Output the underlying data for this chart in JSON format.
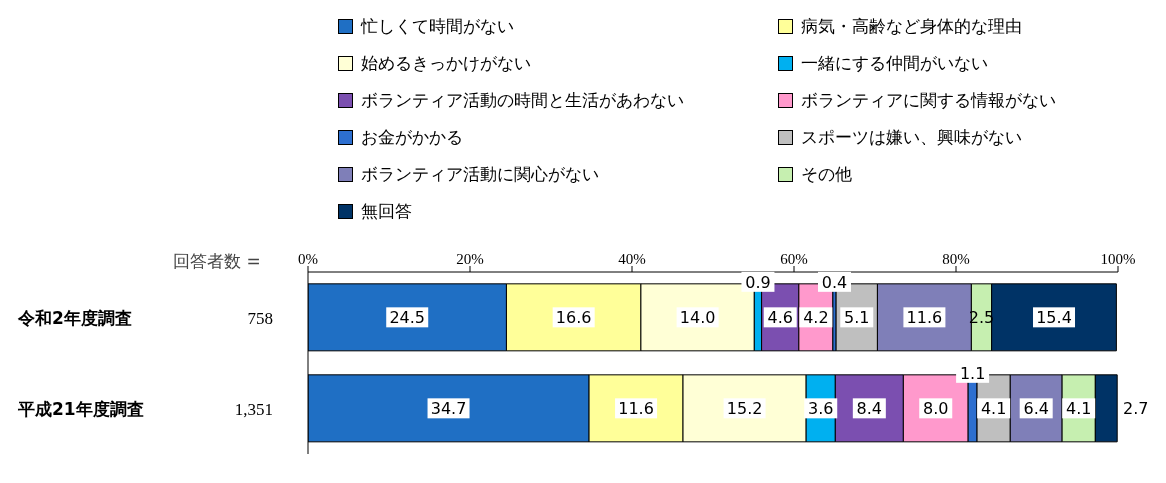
{
  "chart_data": {
    "type": "bar",
    "orientation": "horizontal",
    "stacked": true,
    "categories": [
      "令和2年度調査",
      "平成21年度調査"
    ],
    "xlim": [
      0,
      100
    ],
    "xticks": [
      {
        "value": 0,
        "label": "0%"
      },
      {
        "value": 20,
        "label": "20%"
      },
      {
        "value": 40,
        "label": "40%"
      },
      {
        "value": 60,
        "label": "60%"
      },
      {
        "value": 80,
        "label": "80%"
      },
      {
        "value": 100,
        "label": "100%"
      }
    ],
    "grid": false,
    "legend": "top",
    "annotations": [
      "回答者数 =",
      "758",
      "1,351"
    ],
    "series": [
      {
        "name": "忙しくて時間がない",
        "color": "#1f6fc4",
        "values": [
          24.5,
          34.7
        ],
        "value_labels": [
          "24.5",
          "34.7"
        ]
      },
      {
        "name": "病気・高齢など身体的な理由",
        "color": "#ffff99",
        "values": [
          16.6,
          11.6
        ],
        "value_labels": [
          "16.6",
          "11.6"
        ]
      },
      {
        "name": "始めるきっかけがない",
        "color": "#ffffd6",
        "values": [
          14.0,
          15.2
        ],
        "value_labels": [
          "14.0",
          "15.2"
        ]
      },
      {
        "name": "一緒にする仲間がいない",
        "color": "#00b0f0",
        "values": [
          0.9,
          3.6
        ],
        "value_labels": [
          "0.9",
          "3.6"
        ]
      },
      {
        "name": "ボランティア活動の時間と生活があわない",
        "color": "#7b4fb0",
        "values": [
          4.6,
          8.4
        ],
        "value_labels": [
          "4.6",
          "8.4"
        ]
      },
      {
        "name": "ボランティアに関する情報がない",
        "color": "#ff99cc",
        "values": [
          4.2,
          8.0
        ],
        "value_labels": [
          "4.2",
          "8.0"
        ]
      },
      {
        "name": "お金がかかる",
        "color": "#2d6fd0",
        "values": [
          0.4,
          1.1
        ],
        "value_labels": [
          "0.4",
          "1.1"
        ]
      },
      {
        "name": "スポーツは嫌い、興味がない",
        "color": "#bfbfbf",
        "values": [
          5.1,
          4.1
        ],
        "value_labels": [
          "5.1",
          "4.1"
        ]
      },
      {
        "name": "ボランティア活動に関心がない",
        "color": "#7f7fb8",
        "values": [
          11.6,
          6.4
        ],
        "value_labels": [
          "11.6",
          "6.4"
        ]
      },
      {
        "name": "その他",
        "color": "#c6efb0",
        "values": [
          2.5,
          4.1
        ],
        "value_labels": [
          "2.5",
          "4.1"
        ]
      },
      {
        "name": "無回答",
        "color": "#003366",
        "values": [
          15.4,
          2.7
        ],
        "value_labels": [
          "15.4",
          "2.7"
        ]
      }
    ]
  }
}
